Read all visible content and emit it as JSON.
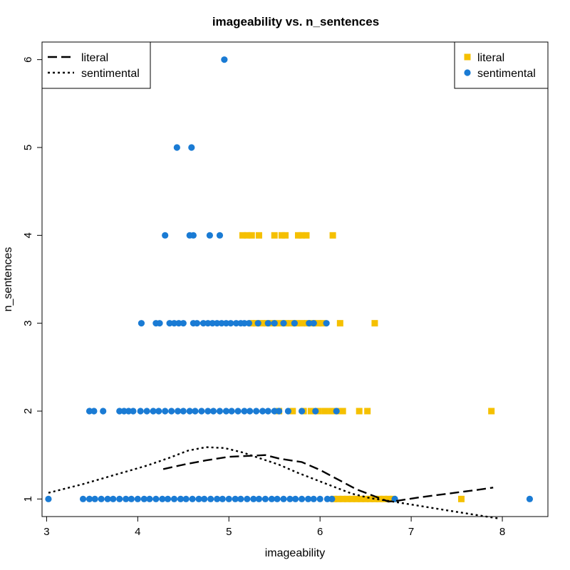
{
  "chart_data": {
    "type": "scatter",
    "title": "imageability vs. n_sentences",
    "xlabel": "imageability",
    "ylabel": "n_sentences",
    "xlim": [
      2.95,
      8.5
    ],
    "ylim": [
      0.8,
      6.2
    ],
    "xticks": [
      3,
      4,
      5,
      6,
      7,
      8
    ],
    "yticks": [
      1,
      2,
      3,
      4,
      5,
      6
    ],
    "grid": false,
    "series": [
      {
        "name": "literal",
        "marker": "square",
        "color": "#F5C000",
        "points": [
          [
            5.15,
            4
          ],
          [
            5.2,
            4
          ],
          [
            5.25,
            4
          ],
          [
            5.33,
            4
          ],
          [
            5.5,
            4
          ],
          [
            5.58,
            4
          ],
          [
            5.62,
            4
          ],
          [
            5.76,
            4
          ],
          [
            5.8,
            4
          ],
          [
            5.85,
            4
          ],
          [
            6.14,
            4
          ],
          [
            5.25,
            3
          ],
          [
            5.3,
            3
          ],
          [
            5.36,
            3
          ],
          [
            5.42,
            3
          ],
          [
            5.48,
            3
          ],
          [
            5.55,
            3
          ],
          [
            5.62,
            3
          ],
          [
            5.68,
            3
          ],
          [
            5.74,
            3
          ],
          [
            5.8,
            3
          ],
          [
            5.86,
            3
          ],
          [
            5.92,
            3
          ],
          [
            5.98,
            3
          ],
          [
            6.03,
            3
          ],
          [
            6.22,
            3
          ],
          [
            6.6,
            3
          ],
          [
            5.55,
            2
          ],
          [
            5.7,
            2
          ],
          [
            5.82,
            2
          ],
          [
            5.9,
            2
          ],
          [
            5.98,
            2
          ],
          [
            6.05,
            2
          ],
          [
            6.12,
            2
          ],
          [
            6.18,
            2
          ],
          [
            6.25,
            2
          ],
          [
            6.43,
            2
          ],
          [
            6.52,
            2
          ],
          [
            7.88,
            2
          ],
          [
            6.15,
            1
          ],
          [
            6.2,
            1
          ],
          [
            6.25,
            1
          ],
          [
            6.3,
            1
          ],
          [
            6.35,
            1
          ],
          [
            6.4,
            1
          ],
          [
            6.45,
            1
          ],
          [
            6.5,
            1
          ],
          [
            6.55,
            1
          ],
          [
            6.6,
            1
          ],
          [
            6.65,
            1
          ],
          [
            6.7,
            1
          ],
          [
            6.75,
            1
          ],
          [
            6.8,
            1
          ],
          [
            7.55,
            1
          ]
        ]
      },
      {
        "name": "sentimental",
        "marker": "circle",
        "color": "#1A7BD4",
        "points": [
          [
            4.95,
            6
          ],
          [
            4.43,
            5
          ],
          [
            4.59,
            5
          ],
          [
            4.3,
            4
          ],
          [
            4.57,
            4
          ],
          [
            4.61,
            4
          ],
          [
            4.79,
            4
          ],
          [
            4.9,
            4
          ],
          [
            4.04,
            3
          ],
          [
            4.2,
            3
          ],
          [
            4.24,
            3
          ],
          [
            4.35,
            3
          ],
          [
            4.4,
            3
          ],
          [
            4.45,
            3
          ],
          [
            4.5,
            3
          ],
          [
            4.61,
            3
          ],
          [
            4.65,
            3
          ],
          [
            4.72,
            3
          ],
          [
            4.77,
            3
          ],
          [
            4.82,
            3
          ],
          [
            4.87,
            3
          ],
          [
            4.92,
            3
          ],
          [
            4.97,
            3
          ],
          [
            5.02,
            3
          ],
          [
            5.08,
            3
          ],
          [
            5.13,
            3
          ],
          [
            5.17,
            3
          ],
          [
            5.22,
            3
          ],
          [
            5.32,
            3
          ],
          [
            5.43,
            3
          ],
          [
            5.5,
            3
          ],
          [
            5.6,
            3
          ],
          [
            5.72,
            3
          ],
          [
            5.88,
            3
          ],
          [
            5.93,
            3
          ],
          [
            6.07,
            3
          ],
          [
            3.47,
            2
          ],
          [
            3.52,
            2
          ],
          [
            3.62,
            2
          ],
          [
            3.8,
            2
          ],
          [
            3.85,
            2
          ],
          [
            3.9,
            2
          ],
          [
            3.95,
            2
          ],
          [
            4.03,
            2
          ],
          [
            4.1,
            2
          ],
          [
            4.17,
            2
          ],
          [
            4.23,
            2
          ],
          [
            4.3,
            2
          ],
          [
            4.37,
            2
          ],
          [
            4.44,
            2
          ],
          [
            4.5,
            2
          ],
          [
            4.57,
            2
          ],
          [
            4.63,
            2
          ],
          [
            4.7,
            2
          ],
          [
            4.77,
            2
          ],
          [
            4.83,
            2
          ],
          [
            4.9,
            2
          ],
          [
            4.97,
            2
          ],
          [
            5.03,
            2
          ],
          [
            5.1,
            2
          ],
          [
            5.17,
            2
          ],
          [
            5.23,
            2
          ],
          [
            5.3,
            2
          ],
          [
            5.37,
            2
          ],
          [
            5.43,
            2
          ],
          [
            5.5,
            2
          ],
          [
            5.55,
            2
          ],
          [
            5.65,
            2
          ],
          [
            5.8,
            2
          ],
          [
            5.95,
            2
          ],
          [
            6.18,
            2
          ],
          [
            3.02,
            1
          ],
          [
            3.4,
            1
          ],
          [
            3.47,
            1
          ],
          [
            3.53,
            1
          ],
          [
            3.6,
            1
          ],
          [
            3.67,
            1
          ],
          [
            3.73,
            1
          ],
          [
            3.8,
            1
          ],
          [
            3.87,
            1
          ],
          [
            3.93,
            1
          ],
          [
            4.0,
            1
          ],
          [
            4.07,
            1
          ],
          [
            4.13,
            1
          ],
          [
            4.2,
            1
          ],
          [
            4.27,
            1
          ],
          [
            4.33,
            1
          ],
          [
            4.4,
            1
          ],
          [
            4.47,
            1
          ],
          [
            4.53,
            1
          ],
          [
            4.6,
            1
          ],
          [
            4.67,
            1
          ],
          [
            4.73,
            1
          ],
          [
            4.8,
            1
          ],
          [
            4.87,
            1
          ],
          [
            4.93,
            1
          ],
          [
            5.0,
            1
          ],
          [
            5.07,
            1
          ],
          [
            5.13,
            1
          ],
          [
            5.2,
            1
          ],
          [
            5.27,
            1
          ],
          [
            5.33,
            1
          ],
          [
            5.4,
            1
          ],
          [
            5.47,
            1
          ],
          [
            5.53,
            1
          ],
          [
            5.6,
            1
          ],
          [
            5.67,
            1
          ],
          [
            5.73,
            1
          ],
          [
            5.8,
            1
          ],
          [
            5.87,
            1
          ],
          [
            5.93,
            1
          ],
          [
            6.0,
            1
          ],
          [
            6.08,
            1
          ],
          [
            6.13,
            1
          ],
          [
            6.82,
            1
          ],
          [
            8.3,
            1
          ]
        ]
      }
    ],
    "lines": [
      {
        "name": "literal",
        "style": "dashed",
        "color": "#000000",
        "points": [
          [
            4.28,
            1.34
          ],
          [
            4.5,
            1.39
          ],
          [
            4.75,
            1.44
          ],
          [
            5.0,
            1.48
          ],
          [
            5.2,
            1.49
          ],
          [
            5.4,
            1.5
          ],
          [
            5.55,
            1.46
          ],
          [
            5.8,
            1.42
          ],
          [
            6.0,
            1.33
          ],
          [
            6.2,
            1.22
          ],
          [
            6.4,
            1.11
          ],
          [
            6.6,
            1.03
          ],
          [
            6.75,
            0.97
          ],
          [
            6.85,
            0.98
          ],
          [
            7.1,
            1.02
          ],
          [
            7.4,
            1.06
          ],
          [
            7.7,
            1.1
          ],
          [
            7.9,
            1.13
          ]
        ]
      },
      {
        "name": "sentimental",
        "style": "dotted",
        "color": "#000000",
        "points": [
          [
            3.02,
            1.07
          ],
          [
            3.4,
            1.17
          ],
          [
            3.8,
            1.29
          ],
          [
            4.1,
            1.38
          ],
          [
            4.35,
            1.47
          ],
          [
            4.55,
            1.55
          ],
          [
            4.75,
            1.59
          ],
          [
            4.95,
            1.58
          ],
          [
            5.15,
            1.53
          ],
          [
            5.35,
            1.46
          ],
          [
            5.55,
            1.39
          ],
          [
            5.75,
            1.3
          ],
          [
            5.95,
            1.22
          ],
          [
            6.15,
            1.14
          ],
          [
            6.35,
            1.06
          ],
          [
            6.55,
            1.01
          ],
          [
            6.8,
            0.97
          ],
          [
            7.1,
            0.92
          ],
          [
            7.4,
            0.87
          ],
          [
            7.7,
            0.82
          ],
          [
            7.95,
            0.78
          ]
        ]
      }
    ],
    "legends": [
      {
        "placement": "top-left",
        "entries": [
          {
            "label": "literal",
            "style": "dashed"
          },
          {
            "label": "sentimental",
            "style": "dotted"
          }
        ]
      },
      {
        "placement": "top-right",
        "entries": [
          {
            "label": "literal",
            "marker": "square",
            "color": "#F5C000"
          },
          {
            "label": "sentimental",
            "marker": "circle",
            "color": "#1A7BD4"
          }
        ]
      }
    ]
  }
}
